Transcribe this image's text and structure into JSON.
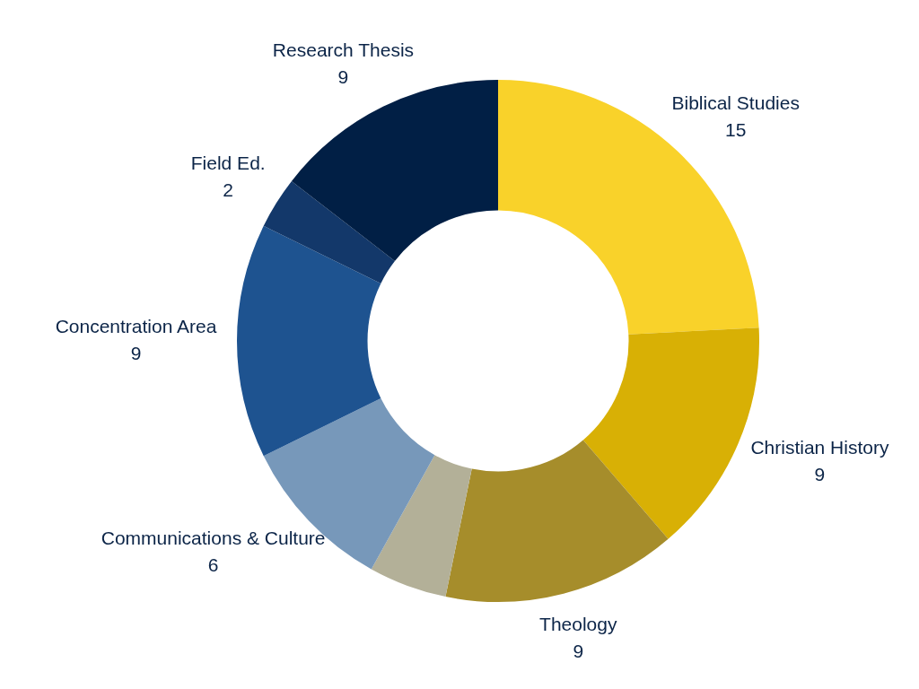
{
  "chart_data": {
    "type": "donut",
    "categories": [
      "Biblical Studies",
      "Christian History",
      "Theology",
      null,
      "Communications & Culture",
      "Concentration Area",
      "Field Ed.",
      "Research Thesis"
    ],
    "values": [
      15,
      9,
      9,
      3,
      6,
      9,
      2,
      9
    ],
    "value_labels": [
      "15",
      "9",
      "9",
      null,
      "6",
      "9",
      "2",
      "9"
    ],
    "colors": [
      "#f9d22a",
      "#d8b005",
      "#a68d2b",
      "#b3b098",
      "#7798ba",
      "#1e5390",
      "#13386a",
      "#011f45"
    ]
  }
}
